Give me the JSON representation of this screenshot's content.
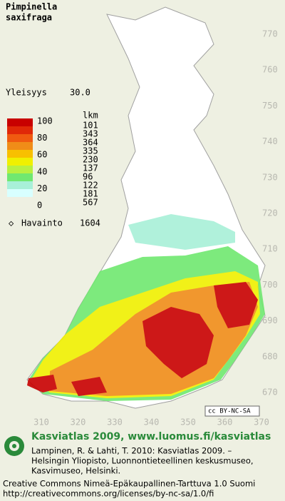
{
  "title": {
    "genus": "Pimpinella",
    "species": "saxifraga"
  },
  "frequency": {
    "label": "Yleisyys",
    "value": "30.0"
  },
  "legend": {
    "levels": [
      100,
      80,
      60,
      40,
      20,
      0
    ],
    "colors": [
      "#c80000",
      "#e02808",
      "#f05a10",
      "#f08c18",
      "#f8c000",
      "#f0f000",
      "#b8f040",
      "#70e870",
      "#a8f0d8",
      "#d8ffff"
    ],
    "counts_header": "lkm",
    "counts": [
      101,
      343,
      364,
      335,
      230,
      137,
      96,
      122,
      181,
      567
    ],
    "observations_label": "Havainto",
    "observations": 1604
  },
  "axes": {
    "y_labels": [
      770,
      760,
      750,
      740,
      730,
      720,
      710,
      700,
      690,
      680,
      670
    ],
    "x_labels": [
      310,
      320,
      330,
      340,
      350,
      360,
      370
    ]
  },
  "license_badge": "cc BY-NC-SA",
  "footer": {
    "heading": "Kasviatlas 2009, www.luomus.fi/kasviatlas",
    "citation": [
      "Lampinen, R. & Lahti, T. 2010: Kasviatlas 2009. –",
      "Helsingin Yliopisto, Luonnontieteellinen keskusmuseo,",
      "Kasvimuseo, Helsinki."
    ],
    "license": [
      "Creative Commons Nimeä-Epäkaupallinen-Tarttuva 1.0 Suomi",
      "http://creativecommons.org/licenses/by-nc-sa/1.0/fi"
    ]
  }
}
